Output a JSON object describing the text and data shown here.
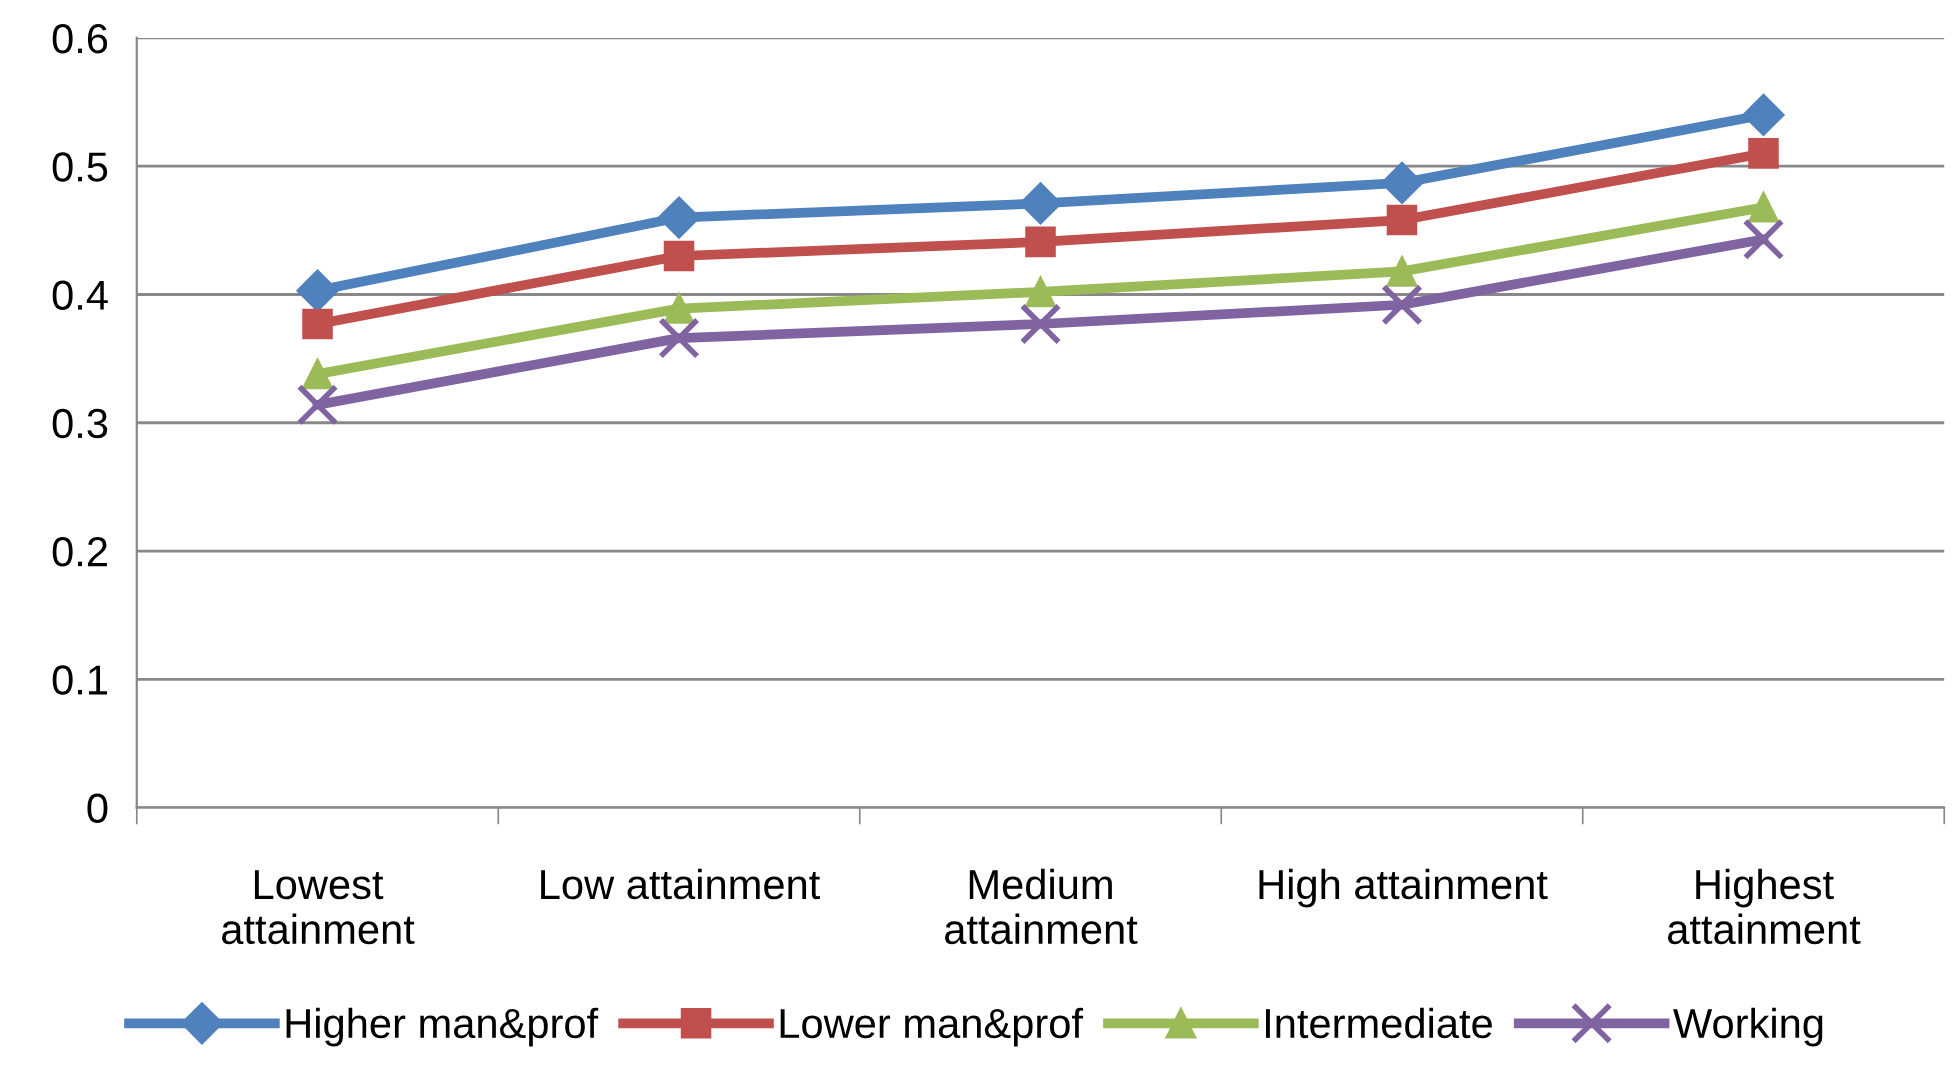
{
  "chart_data": {
    "type": "line",
    "categories": [
      "Lowest\nattainment",
      "Low attainment",
      "Medium\nattainment",
      "High attainment",
      "Highest\nattainment"
    ],
    "series": [
      {
        "name": "Higher man&prof",
        "color": "#4f81bd",
        "marker": "diamond",
        "values": [
          0.403,
          0.46,
          0.471,
          0.487,
          0.54
        ]
      },
      {
        "name": "Lower man&prof",
        "color": "#c0504d",
        "marker": "square",
        "values": [
          0.377,
          0.43,
          0.441,
          0.458,
          0.51
        ]
      },
      {
        "name": "Intermediate",
        "color": "#9bbb59",
        "marker": "triangle",
        "values": [
          0.338,
          0.389,
          0.402,
          0.418,
          0.468
        ]
      },
      {
        "name": "Working",
        "color": "#8064a2",
        "marker": "cross",
        "values": [
          0.314,
          0.366,
          0.377,
          0.392,
          0.443
        ]
      }
    ],
    "ylim": [
      0,
      0.6
    ],
    "yticks": [
      0,
      0.1,
      0.2,
      0.3,
      0.4,
      0.5,
      0.6
    ],
    "grid": "y",
    "legend": "bottom",
    "line_style": "solid"
  }
}
